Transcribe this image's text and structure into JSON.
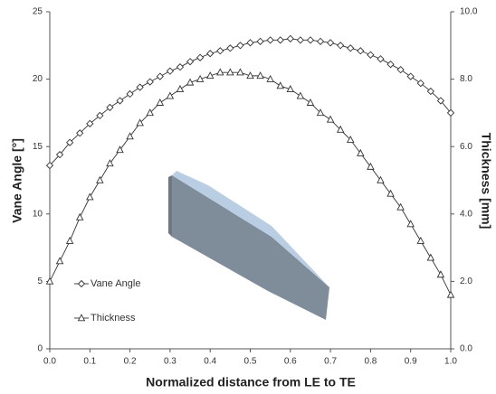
{
  "chart_data": {
    "type": "line",
    "x_label": "Normalized distance from LE to TE",
    "y_label": "Vane Angle [°]",
    "y2_label": "Thickness [mm]",
    "x": [
      0,
      0.025,
      0.05,
      0.075,
      0.1,
      0.125,
      0.15,
      0.175,
      0.2,
      0.225,
      0.25,
      0.275,
      0.3,
      0.325,
      0.35,
      0.375,
      0.4,
      0.425,
      0.45,
      0.475,
      0.5,
      0.525,
      0.55,
      0.575,
      0.6,
      0.625,
      0.65,
      0.675,
      0.7,
      0.725,
      0.75,
      0.775,
      0.8,
      0.825,
      0.85,
      0.875,
      0.9,
      0.925,
      0.95,
      0.975,
      1
    ],
    "series": [
      {
        "name": "Vane Angle",
        "color": "#333333",
        "marker": "diamond",
        "values": [
          13.6,
          14.4,
          15.3,
          16.0,
          16.7,
          17.3,
          17.9,
          18.4,
          18.9,
          19.4,
          19.8,
          20.2,
          20.6,
          20.9,
          21.3,
          21.6,
          21.9,
          22.1,
          22.3,
          22.5,
          22.7,
          22.8,
          22.9,
          22.9,
          23.0,
          22.9,
          22.9,
          22.8,
          22.7,
          22.5,
          22.3,
          22.1,
          21.8,
          21.5,
          21.1,
          20.7,
          20.2,
          19.7,
          19.1,
          18.4,
          17.5
        ]
      },
      {
        "name": "Thickness",
        "color": "#333333",
        "marker": "triangle",
        "axis": "y2",
        "values": [
          2.0,
          2.6,
          3.2,
          3.9,
          4.5,
          5.0,
          5.5,
          5.9,
          6.3,
          6.7,
          7.0,
          7.3,
          7.5,
          7.7,
          7.9,
          8.0,
          8.1,
          8.2,
          8.2,
          8.2,
          8.1,
          8.1,
          8.0,
          7.8,
          7.7,
          7.5,
          7.3,
          7.0,
          6.8,
          6.5,
          6.2,
          5.8,
          5.4,
          5.0,
          4.6,
          4.2,
          3.7,
          3.2,
          2.7,
          2.2,
          1.6
        ]
      }
    ],
    "xlim": [
      0,
      1
    ],
    "xticks": [
      {
        "value": 0,
        "label": "0.0"
      },
      0.1,
      0.2,
      0.3,
      0.4,
      0.5,
      0.6,
      0.7,
      0.8,
      0.9,
      {
        "value": 1,
        "label": "1.0"
      }
    ],
    "ylim": [
      0,
      25
    ],
    "yticks": [
      0,
      5,
      10,
      15,
      20,
      25
    ],
    "y2lim": [
      0,
      10
    ],
    "y2ticks": [
      {
        "value": 0,
        "label": "0.0"
      },
      {
        "value": 2,
        "label": "2.0"
      },
      {
        "value": 4,
        "label": "4.0"
      },
      {
        "value": 6,
        "label": "6.0"
      },
      {
        "value": 8,
        "label": "8.0"
      },
      {
        "value": 10,
        "label": "10.0"
      }
    ],
    "legend": "lower left"
  }
}
